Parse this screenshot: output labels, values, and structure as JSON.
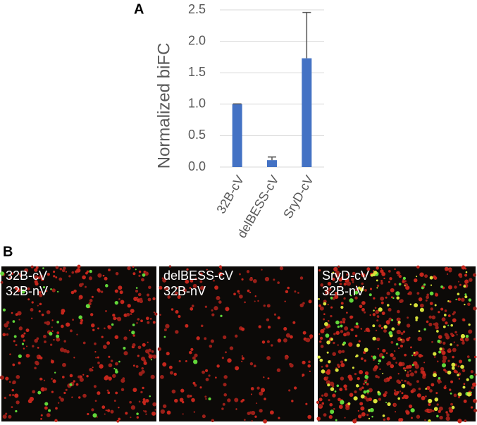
{
  "panels": {
    "a": "A",
    "b": "B"
  },
  "chart_data": {
    "type": "bar",
    "ylabel": "Normalized biFC",
    "categories": [
      "32B-cV",
      "delBESS-cV",
      "SryD-cV"
    ],
    "values": [
      1.0,
      0.11,
      1.73
    ],
    "errors": [
      0.005,
      0.05,
      0.73
    ],
    "color": "#4472c4",
    "error_color": "#555555",
    "ylim": [
      0,
      2.5
    ],
    "yticks": [
      {
        "value": 0,
        "label": "0.0"
      },
      {
        "value": 0.5,
        "label": "0.5"
      },
      {
        "value": 1,
        "label": "1.0"
      },
      {
        "value": 1.5,
        "label": "1.5"
      },
      {
        "value": 2,
        "label": "2.0"
      },
      {
        "value": 2.5,
        "label": "2.5"
      }
    ],
    "grid": true
  },
  "images": [
    {
      "lines": [
        "32B-cV",
        "32B-nV"
      ]
    },
    {
      "lines": [
        "delBESS-cV",
        "32B-nV"
      ]
    },
    {
      "lines": [
        "SryD-cV",
        "32B-nV"
      ]
    }
  ]
}
